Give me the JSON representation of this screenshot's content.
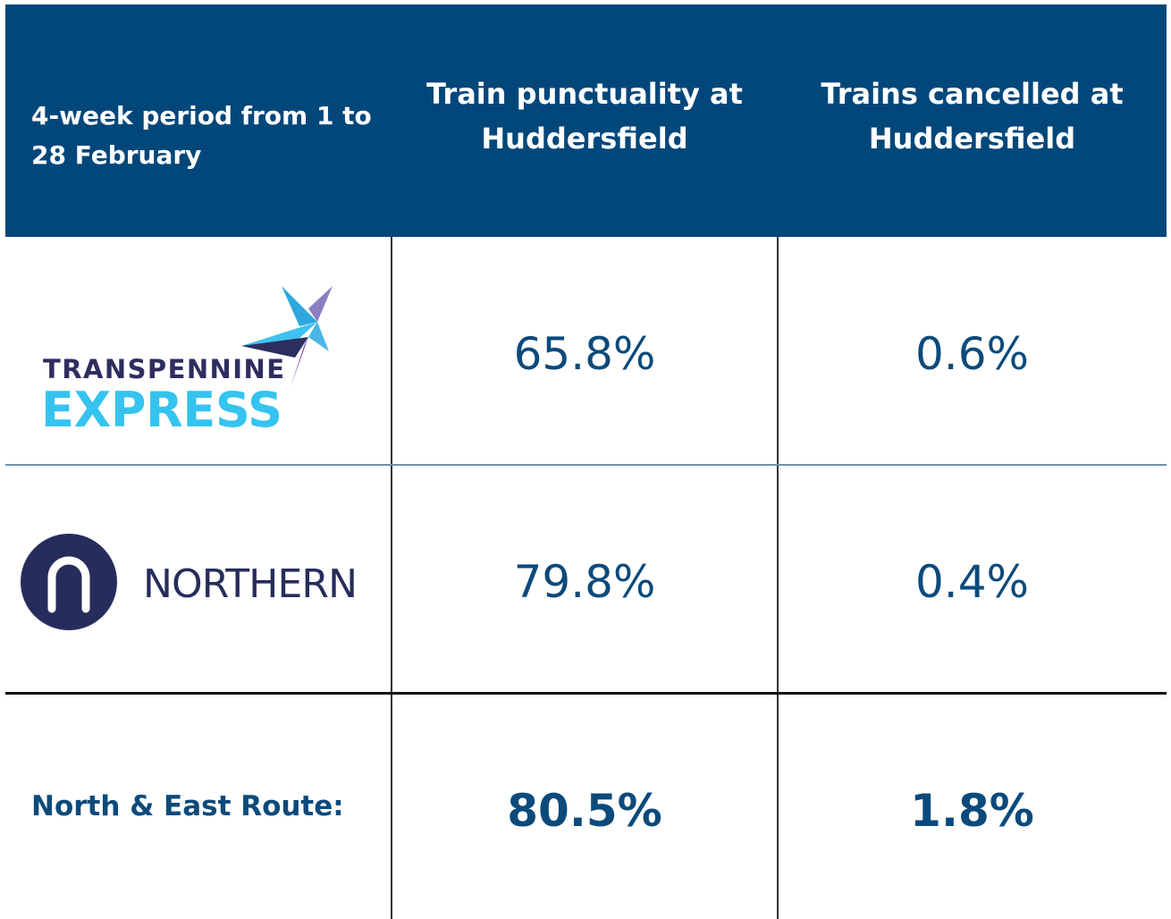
{
  "table": {
    "header": [
      [
        "4-week period from 1 to",
        "28 February"
      ],
      [
        "Train punctuality at",
        "Huddersfield"
      ],
      [
        "Trains cancelled at",
        "Huddersfield"
      ]
    ],
    "rows": [
      {
        "operator": [
          "TRANSPENNINE",
          "EXPRESS"
        ],
        "punctuality": "65.8%",
        "cancelled": "0.6%"
      },
      {
        "operator": [
          "NORTHERN"
        ],
        "punctuality": "79.8%",
        "cancelled": "0.4%"
      },
      {
        "operator": [
          "North & East Route:"
        ],
        "punctuality": "80.5%",
        "cancelled": "1.8%"
      }
    ]
  }
}
